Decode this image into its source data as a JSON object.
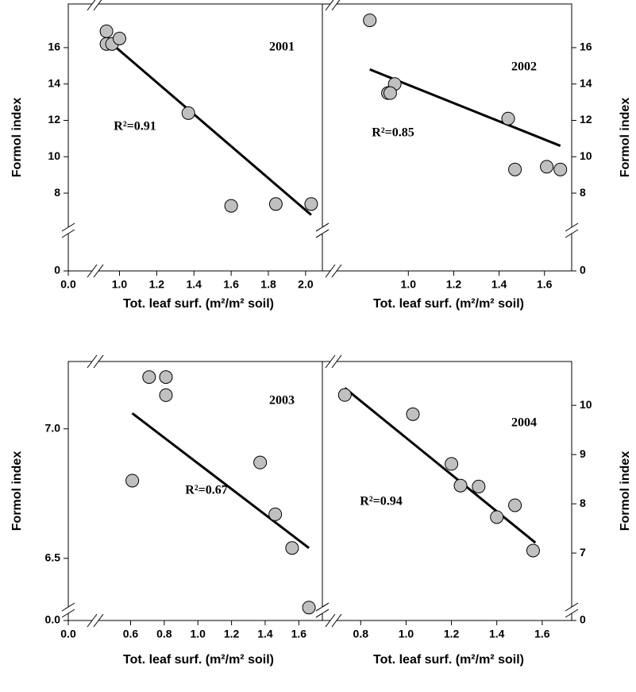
{
  "chart_data": [
    {
      "type": "scatter",
      "axis_break": true,
      "yaxis_side": "left",
      "color": "#c0c0c0",
      "fit_color": "#000000",
      "ylabel": "Formol index",
      "xlabel": "Tot. leaf surf. (m²/m² soil)",
      "annotations": [
        "2001",
        "R²=0.91"
      ],
      "x": [
        0.93,
        0.93,
        0.96,
        1.0,
        1.37,
        1.6,
        1.84,
        2.03
      ],
      "values": [
        16.9,
        16.2,
        16.2,
        16.5,
        12.4,
        7.3,
        7.4,
        7.4
      ],
      "fit": {
        "x": [
          0.96,
          2.03
        ],
        "values": [
          16.2,
          6.8
        ]
      },
      "xlim": [
        0.87,
        2.09
      ],
      "ylim": [
        5.95,
        18.4
      ],
      "xticks": [
        {
          "value": 0,
          "label": "0.0"
        },
        {
          "value": 1,
          "label": "1.0"
        },
        1.2,
        1.4,
        1.6,
        1.8,
        {
          "value": 2,
          "label": "2.0"
        }
      ],
      "yticks": [
        0,
        8,
        10,
        12,
        14,
        16
      ]
    },
    {
      "type": "scatter",
      "axis_break": true,
      "yaxis_side": "right",
      "color": "#c0c0c0",
      "fit_color": "#000000",
      "ylabel": "Formol index",
      "xlabel": "Tot. leaf surf. (m²/m² soil)",
      "annotations": [
        "2002",
        "R²=0.85"
      ],
      "x": [
        0.83,
        0.94,
        0.91,
        0.92,
        1.44,
        1.47,
        1.61,
        1.67
      ],
      "values": [
        17.5,
        14.0,
        13.5,
        13.5,
        12.1,
        9.3,
        9.45,
        9.3
      ],
      "fit": {
        "x": [
          0.83,
          1.67
        ],
        "values": [
          14.8,
          10.6
        ]
      },
      "xlim": [
        0.67,
        1.72
      ],
      "ylim": [
        5.95,
        18.4
      ],
      "xticks": [
        {
          "value": 1,
          "label": "1.0"
        },
        1.2,
        1.4,
        1.6
      ],
      "yticks": [
        0,
        8,
        10,
        12,
        14,
        16
      ]
    },
    {
      "type": "scatter",
      "axis_break": true,
      "yaxis_side": "left",
      "color": "#c0c0c0",
      "fit_color": "#000000",
      "ylabel": "Formol index",
      "xlabel": "Tot. leaf surf. (m²/m² soil)",
      "annotations": [
        "2003",
        "R²=0.67"
      ],
      "x": [
        0.71,
        0.81,
        0.81,
        0.61,
        1.37,
        1.46,
        1.56,
        1.66
      ],
      "values": [
        7.2,
        7.2,
        7.13,
        6.8,
        6.87,
        6.67,
        6.54,
        6.31
      ],
      "fit": {
        "x": [
          0.61,
          1.66
        ],
        "values": [
          7.06,
          6.54
        ]
      },
      "xlim": [
        0.39,
        1.74
      ],
      "ylim": [
        6.3,
        7.26
      ],
      "xticks": [
        {
          "value": 0,
          "label": "0.0"
        },
        0.6,
        0.8,
        {
          "value": 1,
          "label": "1.0"
        },
        1.2,
        1.4,
        1.6
      ],
      "yticks": [
        {
          "value": 0,
          "label": "0.0"
        },
        {
          "value": 6.5,
          "label": "6.5"
        },
        {
          "value": 7,
          "label": "7.0"
        }
      ]
    },
    {
      "type": "scatter",
      "axis_break": true,
      "yaxis_side": "right",
      "color": "#c0c0c0",
      "fit_color": "#000000",
      "ylabel": "Formol index",
      "xlabel": "Tot. leaf surf. (m²/m² soil)",
      "annotations": [
        "2004",
        "R²=0.94"
      ],
      "x": [
        0.73,
        1.03,
        1.2,
        1.24,
        1.32,
        1.4,
        1.48,
        1.56
      ],
      "values": [
        10.21,
        9.82,
        8.81,
        8.37,
        8.35,
        7.73,
        7.97,
        7.05
      ],
      "fit": {
        "x": [
          0.73,
          1.57
        ],
        "values": [
          10.35,
          7.21
        ]
      },
      "xlim": [
        0.68,
        1.73
      ],
      "ylim": [
        5.84,
        10.89
      ],
      "xticks": [
        0.8,
        {
          "value": 1,
          "label": "1.0"
        },
        1.2,
        1.4,
        1.6
      ],
      "yticks": [
        0,
        7,
        8,
        9,
        10
      ]
    }
  ]
}
